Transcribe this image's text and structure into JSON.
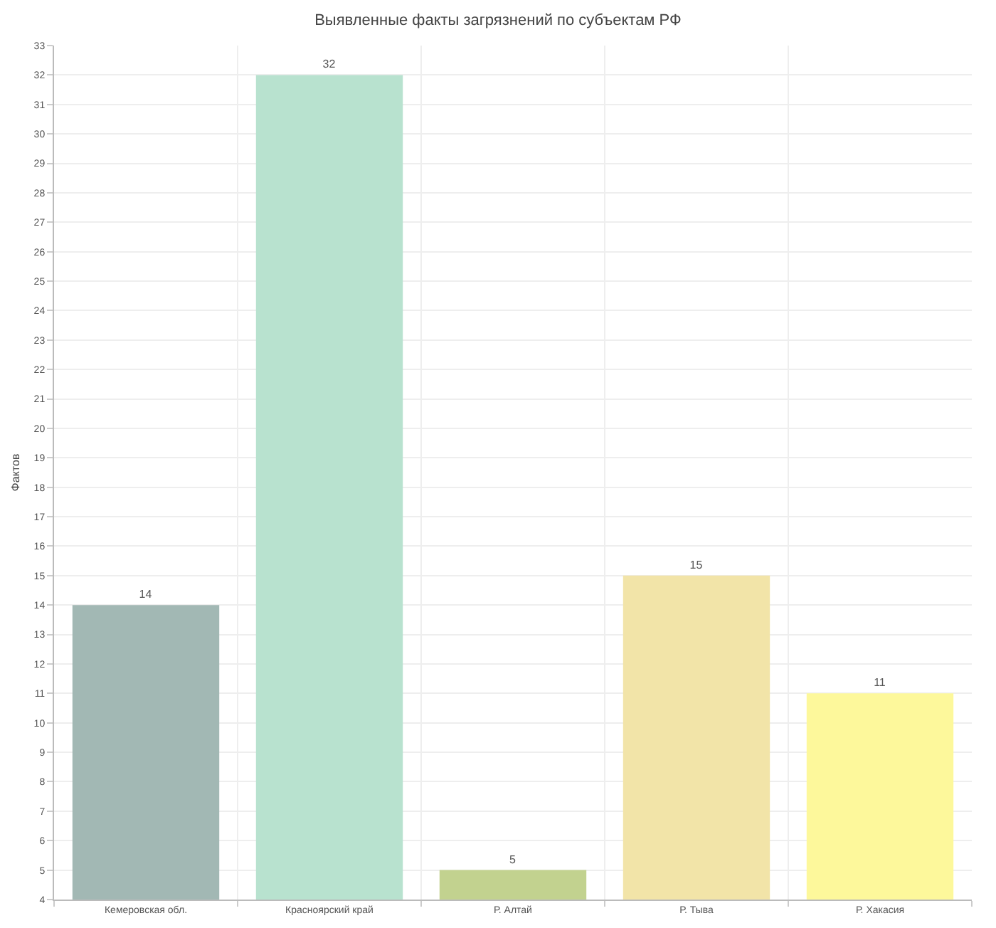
{
  "chart_data": {
    "type": "bar",
    "title": "Выявленные факты загрязнений по субъектам РФ",
    "ylabel": "Фактов",
    "categories": [
      "Кемеровская обл.",
      "Красноярский край",
      "Р. Алтай",
      "Р. Тыва",
      "Р. Хакасия"
    ],
    "values": [
      14,
      32,
      5,
      15,
      11
    ],
    "colors": [
      "#a2b8b4",
      "#b8e2cf",
      "#c2d28f",
      "#f2e4a8",
      "#fdf89b"
    ],
    "ylim": [
      4,
      33
    ],
    "yticks": [
      4,
      5,
      6,
      7,
      8,
      9,
      10,
      11,
      12,
      13,
      14,
      15,
      16,
      17,
      18,
      19,
      20,
      21,
      22,
      23,
      24,
      25,
      26,
      27,
      28,
      29,
      30,
      31,
      32,
      33
    ],
    "grid": true,
    "data_labels": true
  }
}
